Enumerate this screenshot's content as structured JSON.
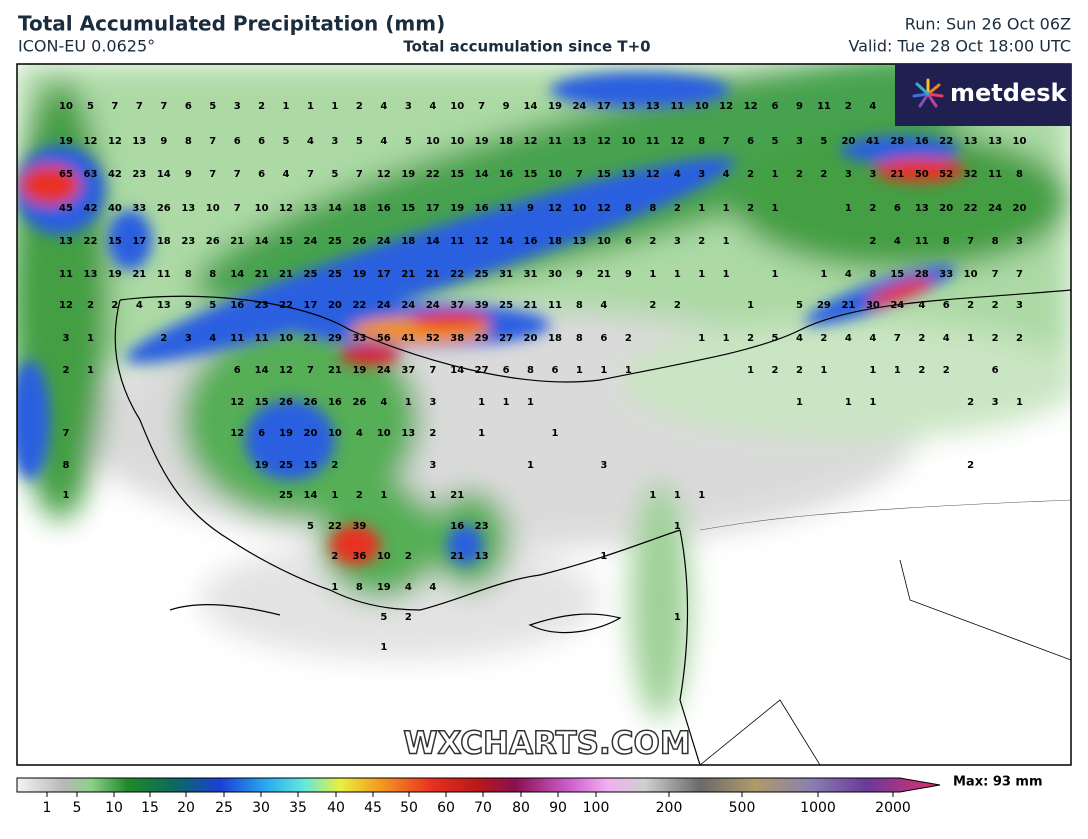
{
  "header": {
    "title": "Total Accumulated Precipitation (mm)",
    "model": "ICON-EU 0.0625°",
    "subtitle": "Total accumulation since T+0",
    "run": "Run: Sun 26 Oct 06Z",
    "valid": "Valid: Tue 28 Oct 18:00 UTC"
  },
  "logo": "metdesk",
  "watermark": "WXCHARTS.COM",
  "map": {
    "grid": [
      [
        10,
        5,
        7,
        7,
        7,
        6,
        5,
        3,
        2,
        1,
        1,
        1,
        2,
        4,
        3,
        4,
        10,
        7,
        9,
        14,
        19,
        24,
        17,
        13,
        13,
        11,
        10,
        12,
        12,
        6,
        9,
        11,
        2,
        4,
        null,
        null,
        null,
        null,
        null,
        null
      ],
      [
        19,
        12,
        12,
        13,
        9,
        8,
        7,
        6,
        6,
        5,
        4,
        3,
        5,
        4,
        5,
        10,
        10,
        19,
        18,
        12,
        11,
        13,
        12,
        10,
        11,
        12,
        8,
        7,
        6,
        5,
        3,
        5,
        20,
        41,
        28,
        16,
        22,
        13,
        13,
        10
      ],
      [
        65,
        63,
        42,
        23,
        14,
        9,
        7,
        7,
        6,
        4,
        7,
        5,
        7,
        12,
        19,
        22,
        15,
        14,
        16,
        15,
        10,
        7,
        15,
        13,
        12,
        4,
        3,
        4,
        2,
        1,
        2,
        2,
        3,
        3,
        21,
        50,
        52,
        32,
        11,
        8
      ],
      [
        45,
        42,
        40,
        33,
        26,
        13,
        10,
        7,
        10,
        12,
        13,
        14,
        18,
        16,
        15,
        17,
        19,
        16,
        11,
        9,
        12,
        10,
        12,
        8,
        8,
        2,
        1,
        1,
        2,
        1,
        null,
        null,
        1,
        2,
        6,
        13,
        20,
        22,
        24,
        20
      ],
      [
        13,
        22,
        15,
        17,
        18,
        23,
        26,
        21,
        14,
        15,
        24,
        25,
        26,
        24,
        18,
        14,
        11,
        12,
        14,
        16,
        18,
        13,
        10,
        6,
        2,
        3,
        2,
        1,
        null,
        null,
        null,
        null,
        null,
        2,
        4,
        11,
        8,
        7,
        8,
        3
      ],
      [
        11,
        13,
        19,
        21,
        11,
        8,
        8,
        14,
        21,
        21,
        25,
        25,
        19,
        17,
        21,
        21,
        22,
        25,
        31,
        31,
        30,
        9,
        21,
        9,
        1,
        1,
        1,
        1,
        null,
        1,
        null,
        1,
        4,
        8,
        15,
        28,
        33,
        10,
        7,
        7
      ],
      [
        12,
        2,
        2,
        4,
        13,
        9,
        5,
        16,
        23,
        22,
        17,
        20,
        22,
        24,
        24,
        24,
        37,
        39,
        25,
        21,
        11,
        8,
        4,
        null,
        2,
        2,
        null,
        null,
        1,
        null,
        5,
        29,
        21,
        30,
        24,
        4,
        6,
        2,
        2,
        3
      ],
      [
        3,
        1,
        null,
        null,
        2,
        3,
        4,
        11,
        11,
        10,
        21,
        29,
        33,
        56,
        41,
        52,
        38,
        29,
        27,
        20,
        18,
        8,
        6,
        2,
        null,
        null,
        1,
        1,
        2,
        5,
        4,
        2,
        4,
        4,
        7,
        2,
        4,
        1,
        2,
        2
      ],
      [
        2,
        1,
        null,
        null,
        null,
        null,
        null,
        6,
        14,
        12,
        7,
        21,
        19,
        24,
        37,
        7,
        14,
        27,
        6,
        8,
        6,
        1,
        1,
        1,
        null,
        null,
        null,
        null,
        1,
        2,
        2,
        1,
        null,
        1,
        1,
        2,
        2,
        null,
        6,
        null
      ],
      [
        null,
        null,
        null,
        null,
        null,
        null,
        null,
        12,
        15,
        26,
        26,
        16,
        26,
        4,
        1,
        3,
        null,
        1,
        1,
        1,
        null,
        null,
        null,
        null,
        null,
        null,
        null,
        null,
        null,
        null,
        1,
        null,
        1,
        1,
        null,
        null,
        null,
        2,
        3,
        1
      ],
      [
        7,
        null,
        null,
        null,
        null,
        null,
        null,
        12,
        6,
        19,
        20,
        10,
        4,
        10,
        13,
        2,
        null,
        1,
        null,
        null,
        1,
        null,
        null,
        null,
        null,
        null,
        null,
        null,
        null,
        null,
        null,
        null,
        null,
        null,
        null,
        null,
        null,
        null,
        null,
        null
      ],
      [
        8,
        null,
        null,
        null,
        null,
        null,
        null,
        null,
        19,
        25,
        15,
        2,
        null,
        null,
        null,
        3,
        null,
        null,
        null,
        1,
        null,
        null,
        3,
        null,
        null,
        null,
        null,
        null,
        null,
        null,
        null,
        null,
        null,
        null,
        null,
        null,
        null,
        2,
        null,
        null
      ],
      [
        1,
        null,
        null,
        null,
        null,
        null,
        null,
        null,
        null,
        25,
        14,
        1,
        2,
        1,
        null,
        1,
        21,
        null,
        null,
        null,
        null,
        null,
        null,
        null,
        1,
        1,
        1,
        null,
        null,
        null,
        null,
        null,
        null,
        null,
        null,
        null,
        null,
        null,
        null,
        null
      ],
      [
        null,
        null,
        null,
        null,
        null,
        null,
        null,
        null,
        null,
        null,
        5,
        22,
        39,
        null,
        null,
        null,
        16,
        23,
        null,
        null,
        null,
        null,
        null,
        null,
        null,
        1,
        null,
        null,
        null,
        null,
        null,
        null,
        null,
        null,
        null,
        null,
        null,
        null,
        null,
        null
      ],
      [
        null,
        null,
        null,
        null,
        null,
        null,
        null,
        null,
        null,
        null,
        null,
        2,
        36,
        10,
        2,
        null,
        21,
        13,
        null,
        null,
        null,
        null,
        1,
        null,
        null,
        null,
        null,
        null,
        null,
        null,
        null,
        null,
        null,
        null,
        null,
        null,
        null,
        null,
        null,
        null
      ],
      [
        null,
        null,
        null,
        null,
        null,
        null,
        null,
        null,
        null,
        null,
        null,
        1,
        8,
        19,
        4,
        4,
        null,
        null,
        null,
        null,
        null,
        null,
        null,
        null,
        null,
        null,
        null,
        null,
        null,
        null,
        null,
        null,
        null,
        null,
        null,
        null,
        null,
        null,
        null,
        null
      ],
      [
        null,
        null,
        null,
        null,
        null,
        null,
        null,
        null,
        null,
        null,
        null,
        null,
        null,
        5,
        2,
        null,
        null,
        null,
        null,
        null,
        null,
        null,
        null,
        null,
        null,
        1,
        null,
        null,
        null,
        null,
        null,
        null,
        null,
        null,
        null,
        null,
        null,
        null,
        null,
        null
      ],
      [
        null,
        null,
        null,
        null,
        null,
        null,
        null,
        null,
        null,
        null,
        null,
        null,
        null,
        1,
        null,
        null,
        null,
        null,
        null,
        null,
        null,
        null,
        null,
        null,
        null,
        null,
        null,
        null,
        null,
        null,
        null,
        null,
        null,
        null,
        null,
        null,
        null,
        null,
        null,
        null
      ]
    ]
  },
  "colorbar": {
    "labels": [
      1,
      5,
      10,
      15,
      20,
      25,
      30,
      35,
      40,
      45,
      50,
      60,
      70,
      80,
      90,
      100,
      200,
      500,
      1000,
      2000
    ],
    "max": "Max: 93 mm"
  }
}
